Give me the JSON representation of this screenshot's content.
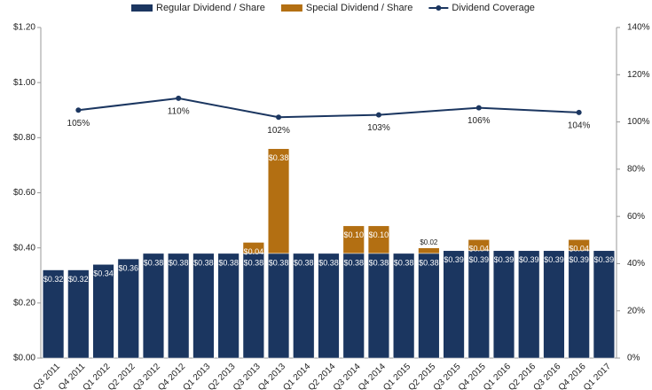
{
  "chart_data": {
    "type": "bar-line",
    "categories": [
      "Q3 2011",
      "Q4 2011",
      "Q1 2012",
      "Q2 2012",
      "Q3 2012",
      "Q4 2012",
      "Q1 2013",
      "Q2 2013",
      "Q3 2013",
      "Q4 2013",
      "Q1 2014",
      "Q2 2014",
      "Q3 2014",
      "Q4 2014",
      "Q1 2015",
      "Q2 2015",
      "Q3 2015",
      "Q4 2015",
      "Q1 2016",
      "Q2 2016",
      "Q3 2016",
      "Q4 2016",
      "Q1 2017"
    ],
    "series": [
      {
        "name": "Regular Dividend / Share",
        "color": "#1b3660",
        "stacked": true,
        "values": [
          0.32,
          0.32,
          0.34,
          0.36,
          0.38,
          0.38,
          0.38,
          0.38,
          0.38,
          0.38,
          0.38,
          0.38,
          0.38,
          0.38,
          0.38,
          0.38,
          0.39,
          0.39,
          0.39,
          0.39,
          0.39,
          0.39,
          0.39
        ],
        "value_labels": [
          "$0.32",
          "$0.32",
          "$0.34",
          "$0.36",
          "$0.38",
          "$0.38",
          "$0.38",
          "$0.38",
          "$0.38",
          "$0.38",
          "$0.38",
          "$0.38",
          "$0.38",
          "$0.38",
          "$0.38",
          "$0.38",
          "$0.39",
          "$0.39",
          "$0.39",
          "$0.39",
          "$0.39",
          "$0.39",
          "$0.39"
        ]
      },
      {
        "name": "Special Dividend / Share",
        "color": "#b36f12",
        "stacked": true,
        "values": [
          null,
          null,
          null,
          null,
          null,
          null,
          null,
          null,
          0.04,
          0.38,
          null,
          null,
          0.1,
          0.1,
          null,
          0.02,
          null,
          0.04,
          null,
          null,
          null,
          0.04,
          null
        ],
        "value_labels": [
          null,
          null,
          null,
          null,
          null,
          null,
          null,
          null,
          "$0.04",
          "$0.38",
          null,
          null,
          "$0.10",
          "$0.10",
          null,
          "$0.02",
          null,
          "$0.04",
          null,
          null,
          null,
          "$0.04",
          null
        ]
      },
      {
        "name": "Dividend Coverage",
        "color": "#1b3660",
        "axis": "y2",
        "kind": "line",
        "span_gaps": true,
        "values": [
          null,
          105,
          null,
          null,
          null,
          110,
          null,
          null,
          null,
          102,
          null,
          null,
          null,
          103,
          null,
          null,
          null,
          106,
          null,
          null,
          null,
          104,
          null
        ],
        "value_labels": [
          null,
          "105%",
          null,
          null,
          null,
          "110%",
          null,
          null,
          null,
          "102%",
          null,
          null,
          null,
          "103%",
          null,
          null,
          null,
          "106%",
          null,
          null,
          null,
          "104%",
          null
        ]
      }
    ],
    "ylim": [
      0,
      1.2
    ],
    "yticks": [
      {
        "value": 0,
        "label": "$0.00"
      },
      {
        "value": 0.2,
        "label": "$0.20"
      },
      {
        "value": 0.4,
        "label": "$0.40"
      },
      {
        "value": 0.6,
        "label": "$0.60"
      },
      {
        "value": 0.8,
        "label": "$0.80"
      },
      {
        "value": 1.0,
        "label": "$1.00"
      },
      {
        "value": 1.2,
        "label": "$1.20"
      }
    ],
    "y2lim": [
      0,
      140
    ],
    "y2ticks": [
      {
        "value": 0,
        "label": "0%"
      },
      {
        "value": 20,
        "label": "20%"
      },
      {
        "value": 40,
        "label": "40%"
      },
      {
        "value": 60,
        "label": "60%"
      },
      {
        "value": 80,
        "label": "80%"
      },
      {
        "value": 100,
        "label": "100%"
      },
      {
        "value": 120,
        "label": "120%"
      },
      {
        "value": 140,
        "label": "140%"
      }
    ],
    "grid": false,
    "legend": "top"
  }
}
